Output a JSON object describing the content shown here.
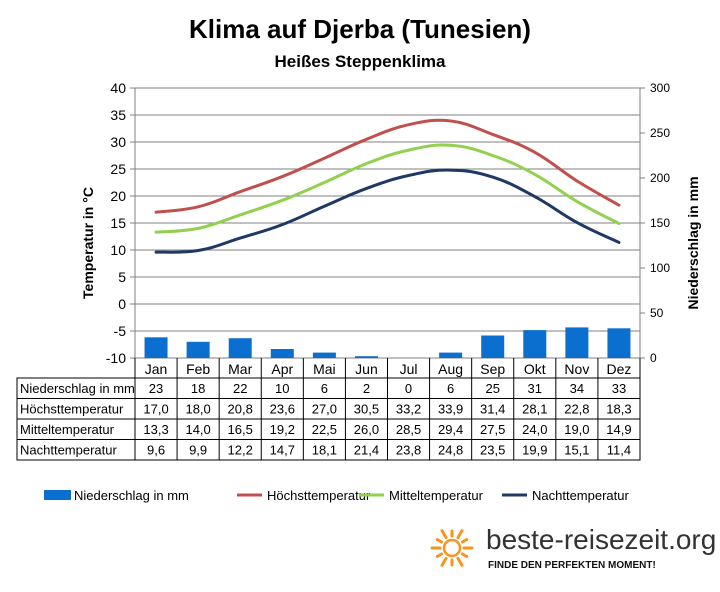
{
  "title": "Klima auf Djerba (Tunesien)",
  "subtitle": "Heißes Steppenklima",
  "chart_data": {
    "type": "bar+line",
    "categories": [
      "Jan",
      "Feb",
      "Mar",
      "Apr",
      "Mai",
      "Jun",
      "Jul",
      "Aug",
      "Sep",
      "Okt",
      "Nov",
      "Dez"
    ],
    "y_left": {
      "label": "Temperatur in °C",
      "min": -10,
      "max": 40,
      "ticks": [
        -10,
        -5,
        0,
        5,
        10,
        15,
        20,
        25,
        30,
        35,
        40
      ]
    },
    "y_right": {
      "label": "Niederschlag in mm",
      "min": 0,
      "max": 300,
      "ticks": [
        0,
        50,
        100,
        150,
        200,
        250,
        300
      ]
    },
    "grid": true,
    "legend_position": "bottom",
    "series": [
      {
        "name": "Niederschlag in mm",
        "type": "bar",
        "axis": "right",
        "color": "#0a6fce",
        "values": [
          23,
          18,
          22,
          10,
          6,
          2,
          0,
          6,
          25,
          31,
          34,
          33
        ],
        "labels": [
          "23",
          "18",
          "22",
          "10",
          "6",
          "2",
          "0",
          "6",
          "25",
          "31",
          "34",
          "33"
        ]
      },
      {
        "name": "Höchsttemperatur",
        "type": "line",
        "axis": "left",
        "color": "#c0504d",
        "values": [
          17.0,
          18.0,
          20.8,
          23.6,
          27.0,
          30.5,
          33.2,
          33.9,
          31.4,
          28.1,
          22.8,
          18.3
        ],
        "labels": [
          "17,0",
          "18,0",
          "20,8",
          "23,6",
          "27,0",
          "30,5",
          "33,2",
          "33,9",
          "31,4",
          "28,1",
          "22,8",
          "18,3"
        ]
      },
      {
        "name": "Mitteltemperatur",
        "type": "line",
        "axis": "left",
        "color": "#92d050",
        "values": [
          13.3,
          14.0,
          16.5,
          19.2,
          22.5,
          26.0,
          28.5,
          29.4,
          27.5,
          24.0,
          19.0,
          14.9
        ],
        "labels": [
          "13,3",
          "14,0",
          "16,5",
          "19,2",
          "22,5",
          "26,0",
          "28,5",
          "29,4",
          "27,5",
          "24,0",
          "19,0",
          "14,9"
        ]
      },
      {
        "name": "Nachttemperatur",
        "type": "line",
        "axis": "left",
        "color": "#1f3864",
        "values": [
          9.6,
          9.9,
          12.2,
          14.7,
          18.1,
          21.4,
          23.8,
          24.8,
          23.5,
          19.9,
          15.1,
          11.4
        ],
        "labels": [
          "9,6",
          "9,9",
          "12,2",
          "14,7",
          "18,1",
          "21,4",
          "23,8",
          "24,8",
          "23,5",
          "19,9",
          "15,1",
          "11,4"
        ]
      }
    ]
  },
  "brand": {
    "name": "beste-reisezeit.org",
    "slogan": "FINDE DEN PERFEKTEN MOMENT!",
    "logo_icon": "sun-icon",
    "logo_color": "#f7941d"
  }
}
